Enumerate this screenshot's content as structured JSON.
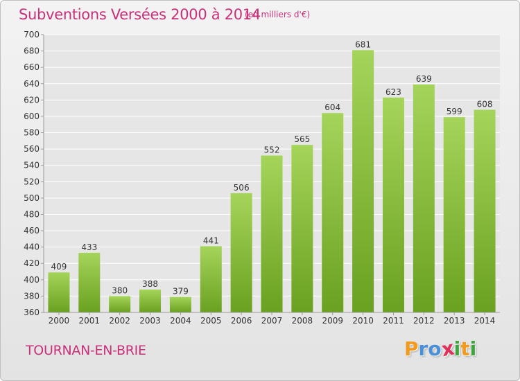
{
  "title": "Subventions Versées 2000 à 2014",
  "unit_note": "(en milliers d'€)",
  "commune": "TOURNAN-EN-BRIE",
  "logo": {
    "letters": [
      "P",
      "r",
      "o",
      "x",
      "i",
      "t",
      "i"
    ],
    "colors": [
      "#f39a1e",
      "#4a90d9",
      "#4a90d9",
      "#e0305a",
      "#3da53d",
      "#f39a1e",
      "#3da53d"
    ]
  },
  "colors": {
    "bar_top": "#a5d45a",
    "bar_bottom": "#6aa120",
    "grid": "#ffffff",
    "title": "#c8307a"
  },
  "chart_data": {
    "type": "bar",
    "categories": [
      "2000",
      "2001",
      "2002",
      "2003",
      "2004",
      "2005",
      "2006",
      "2007",
      "2008",
      "2009",
      "2010",
      "2011",
      "2012",
      "2013",
      "2014"
    ],
    "values": [
      409,
      433,
      380,
      388,
      379,
      441,
      506,
      552,
      565,
      604,
      681,
      623,
      639,
      599,
      608
    ],
    "ylim": [
      360,
      700
    ],
    "yticks": [
      360,
      380,
      400,
      420,
      440,
      460,
      480,
      500,
      520,
      540,
      560,
      580,
      600,
      620,
      640,
      660,
      680,
      700
    ],
    "grid": true,
    "xlabel": "",
    "ylabel": ""
  }
}
